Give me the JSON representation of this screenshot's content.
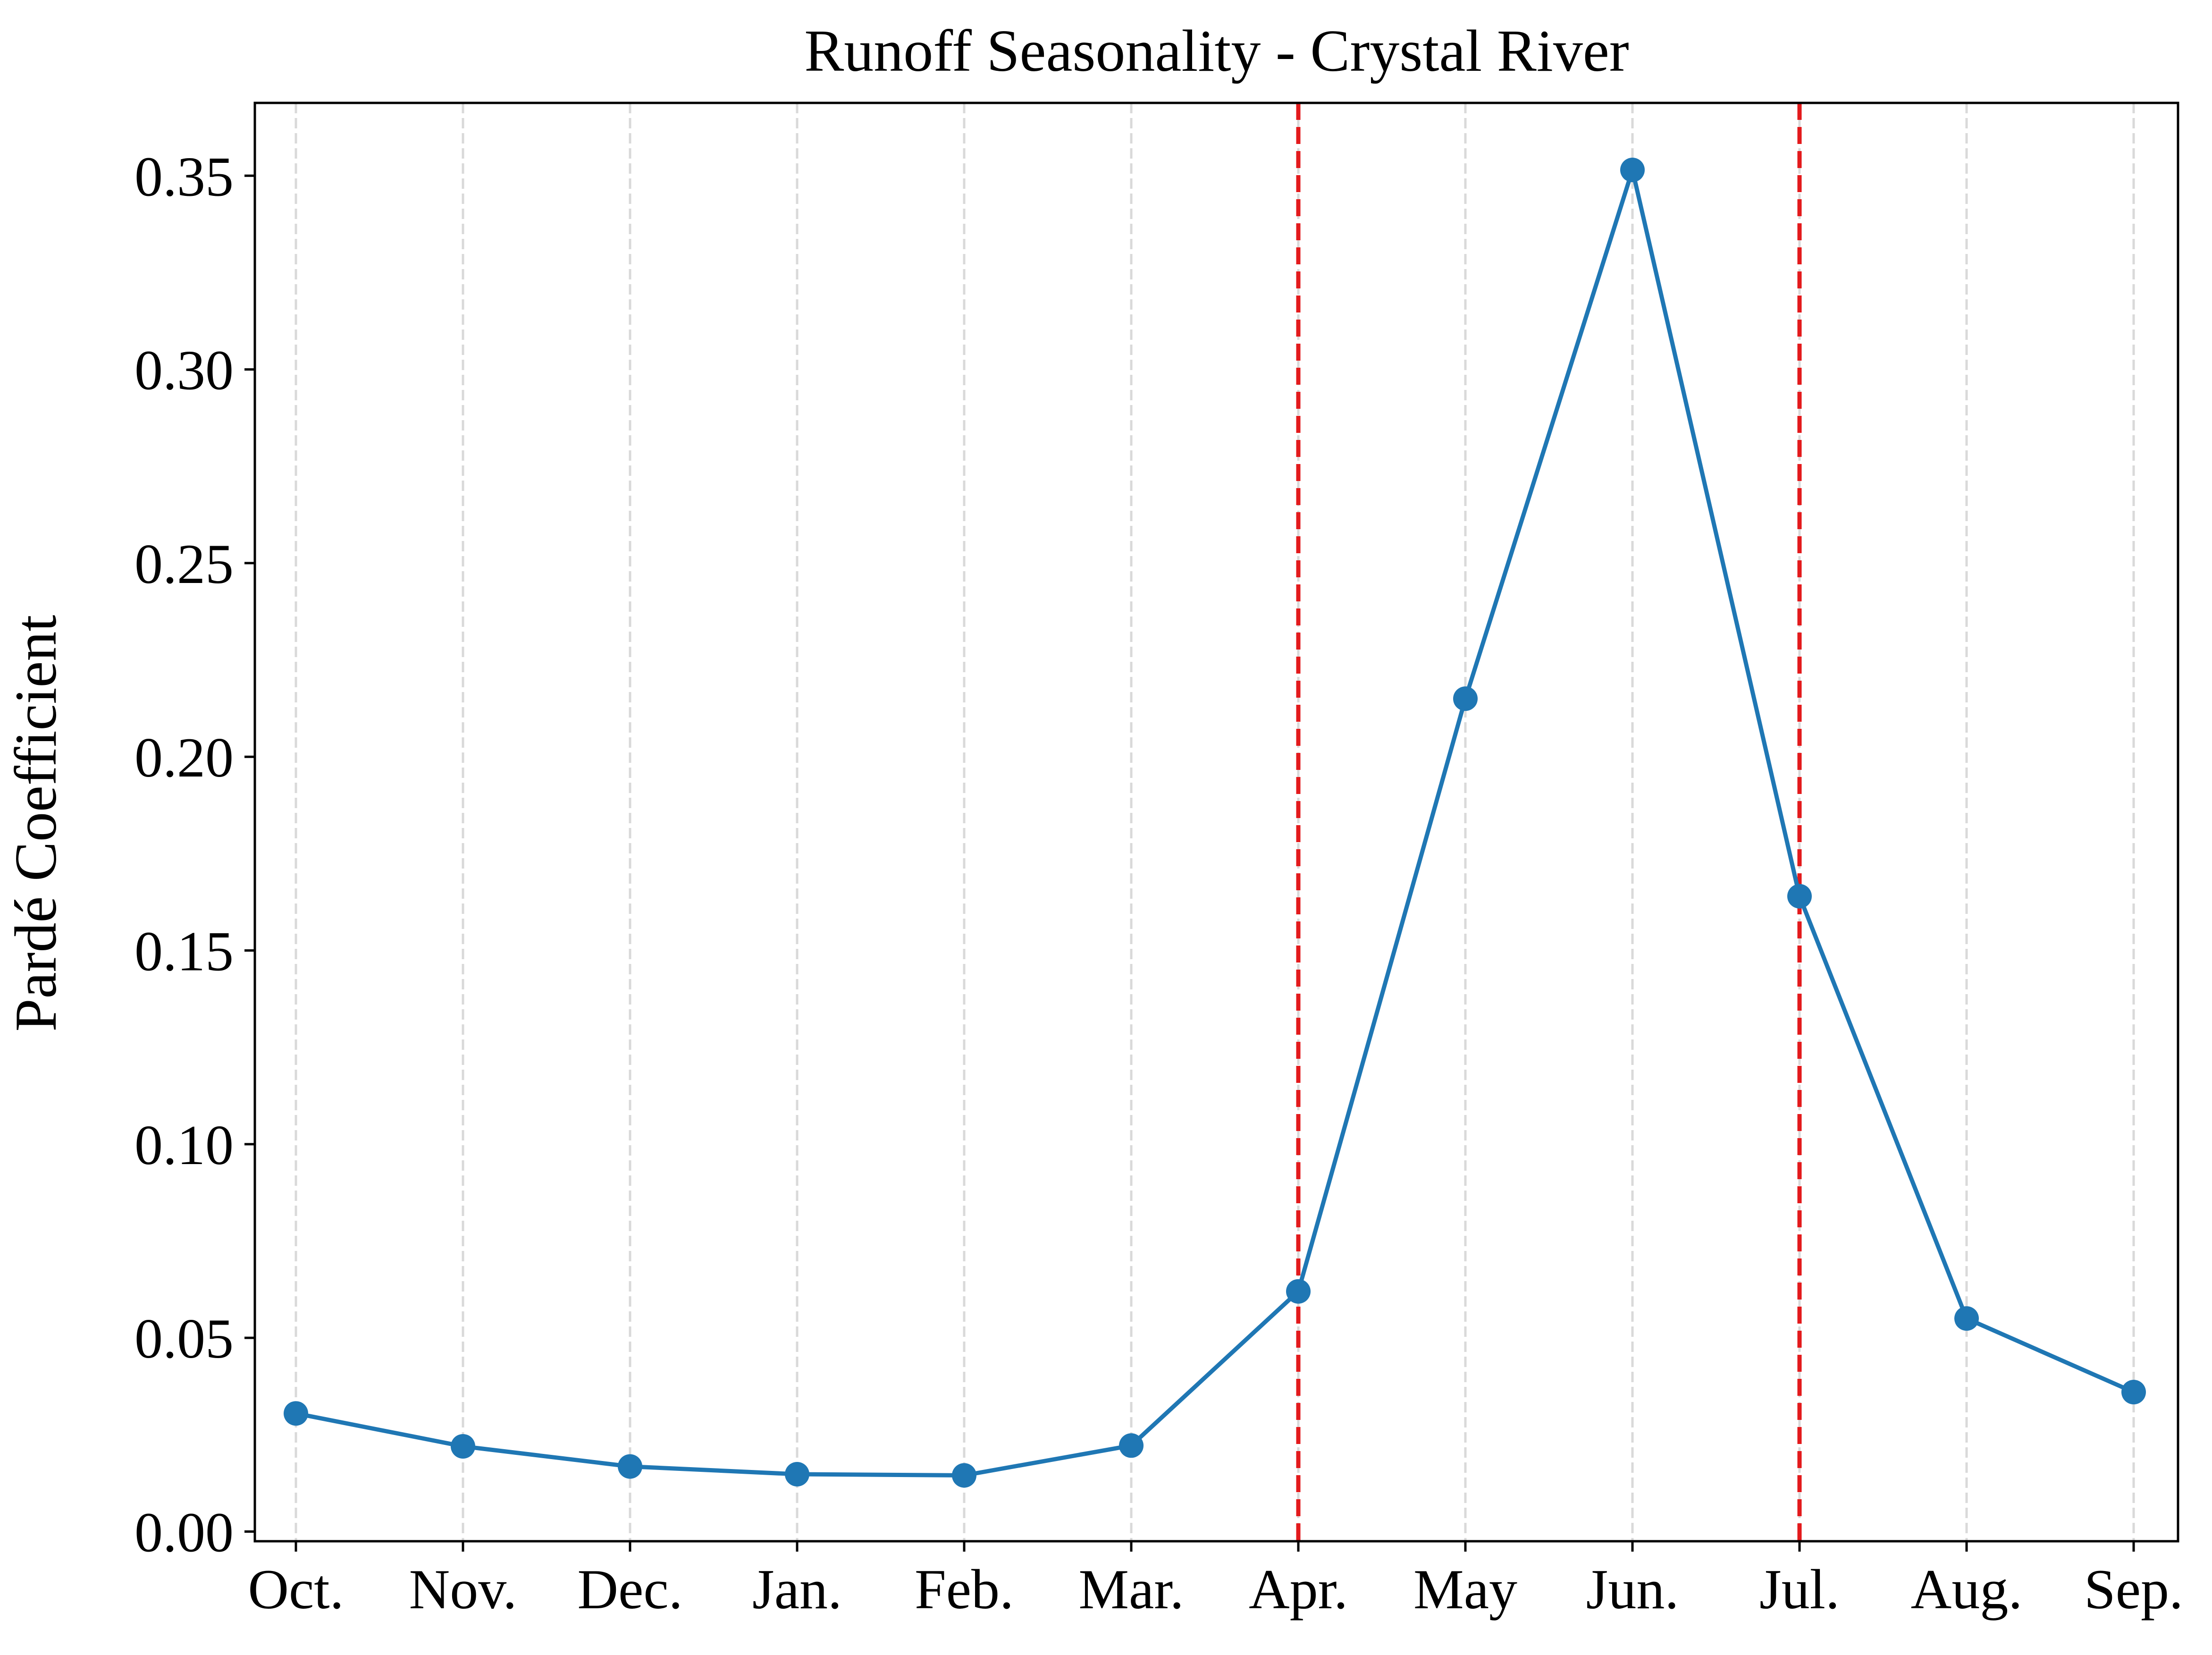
{
  "chart_data": {
    "type": "line",
    "title": "Runoff Seasonality - Crystal River",
    "xlabel": "",
    "ylabel": "Pardé Coefficient",
    "categories": [
      "Oct.",
      "Nov.",
      "Dec.",
      "Jan.",
      "Feb.",
      "Mar.",
      "Apr.",
      "May",
      "Jun.",
      "Jul.",
      "Aug.",
      "Sep."
    ],
    "series": [
      {
        "values": [
          0.0305,
          0.022,
          0.0168,
          0.0148,
          0.0145,
          0.0222,
          0.062,
          0.215,
          0.3515,
          0.164,
          0.055,
          0.036
        ],
        "color": "#1f77b4",
        "marker": "circle"
      }
    ],
    "reference_lines": [
      {
        "orientation": "vertical",
        "at_category": "Apr.",
        "color": "#e31a1c",
        "style": "dashed"
      },
      {
        "orientation": "vertical",
        "at_category": "Jul.",
        "color": "#e31a1c",
        "style": "dashed"
      }
    ],
    "yticks": [
      "0.00",
      "0.05",
      "0.10",
      "0.15",
      "0.20",
      "0.25",
      "0.30",
      "0.35"
    ],
    "ylim": [
      -0.0025,
      0.3688
    ],
    "grid": {
      "x": true,
      "y": false,
      "style": "dashed",
      "color": "#d9d9d9"
    },
    "legend": "none"
  }
}
